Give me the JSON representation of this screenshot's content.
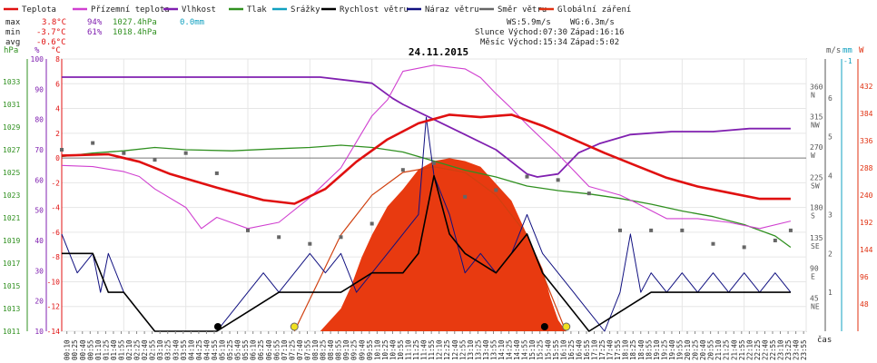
{
  "legend": [
    {
      "label": "Teplota",
      "color": "#e01010"
    },
    {
      "label": "Přízemní teplota",
      "color": "#d040d0"
    },
    {
      "label": "Vlhkost",
      "color": "#8020b0"
    },
    {
      "label": "Tlak",
      "color": "#309020"
    },
    {
      "label": "Srážky",
      "color": "#10a0c0"
    },
    {
      "label": "Rychlost větru",
      "color": "#000000"
    },
    {
      "label": "Náraz větru",
      "color": "#101080"
    },
    {
      "label": "Směr větru",
      "color": "#666666"
    },
    {
      "label": "Globální záření",
      "color": "#e03010"
    }
  ],
  "stats": {
    "max": {
      "label": "max",
      "temp": "3.8°C",
      "hum": "94%",
      "press": "1027.4hPa",
      "rain": "0.0mm"
    },
    "min": {
      "label": "min",
      "temp": "-3.7°C",
      "hum": "61%",
      "press": "1018.4hPa"
    },
    "avg": {
      "label": "avg",
      "temp": "-0.6°C"
    }
  },
  "info": {
    "ws": "WS:5.9m/s",
    "wg": "WG:6.3m/s",
    "sun_label": "Slunce",
    "sun_rise": "Východ:07:30",
    "sun_set": "Západ:16:16",
    "moon_label": "Měsíc",
    "moon_rise": "Východ:15:34",
    "moon_set": "Západ:5:02"
  },
  "units": {
    "hpa": "hPa",
    "pct": "%",
    "degc": "°C",
    "ms": "m/s",
    "mm": "mm",
    "w": "W",
    "time": "čas"
  },
  "chart_data": {
    "type": "line",
    "title": "24.11.2015",
    "x_start_minutes": 10,
    "x_step_minutes": 15,
    "xlabel": "čas",
    "x_ticks": [
      "00:10",
      "00:25",
      "00:40",
      "00:55",
      "01:10",
      "01:25",
      "01:40",
      "01:55",
      "02:10",
      "02:25",
      "02:40",
      "02:55",
      "03:10",
      "03:25",
      "03:40",
      "03:55",
      "04:10",
      "04:25",
      "04:40",
      "04:55",
      "05:10",
      "05:25",
      "05:40",
      "05:55",
      "06:10",
      "06:25",
      "06:40",
      "06:55",
      "07:10",
      "07:25",
      "07:40",
      "07:55",
      "08:10",
      "08:25",
      "08:40",
      "08:55",
      "09:10",
      "09:25",
      "09:40",
      "09:55",
      "10:10",
      "10:25",
      "10:40",
      "10:55",
      "11:10",
      "11:25",
      "11:40",
      "11:55",
      "12:10",
      "12:25",
      "12:40",
      "12:55",
      "13:10",
      "13:25",
      "13:40",
      "13:55",
      "14:10",
      "14:25",
      "14:40",
      "14:55",
      "15:10",
      "15:25",
      "15:40",
      "15:55",
      "16:10",
      "16:25",
      "16:40",
      "16:55",
      "17:10",
      "17:25",
      "17:40",
      "17:55",
      "18:10",
      "18:25",
      "18:40",
      "18:55",
      "19:10",
      "19:25",
      "19:40",
      "19:55",
      "20:10",
      "20:25",
      "20:40",
      "20:55",
      "21:10",
      "21:25",
      "21:40",
      "21:55",
      "22:10",
      "22:25",
      "22:40",
      "22:55",
      "23:10",
      "23:25",
      "23:40",
      "23:55"
    ],
    "axes": {
      "pressure_hpa": {
        "range": [
          1011,
          1035
        ],
        "ticks": [
          1011,
          1013,
          1015,
          1017,
          1019,
          1021,
          1023,
          1025,
          1027,
          1029,
          1031,
          1033
        ]
      },
      "humidity_pct": {
        "range": [
          10,
          100
        ],
        "ticks": [
          10,
          20,
          30,
          40,
          50,
          60,
          70,
          80,
          90,
          100
        ]
      },
      "temperature_c": {
        "range": [
          -14,
          8
        ],
        "ticks": [
          -14,
          -12,
          -10,
          -8,
          -6,
          -4,
          -2,
          0,
          2,
          4,
          6,
          8
        ]
      },
      "wind_dir": {
        "ticks": [
          {
            "deg": 360,
            "label": "N"
          },
          {
            "deg": 315,
            "label": "NW"
          },
          {
            "deg": 270,
            "label": "W"
          },
          {
            "deg": 225,
            "label": "SW"
          },
          {
            "deg": 180,
            "label": "S"
          },
          {
            "deg": 135,
            "label": "SE"
          },
          {
            "deg": 90,
            "label": "E"
          },
          {
            "deg": 45,
            "label": "NE"
          }
        ]
      },
      "wind_speed_ms": {
        "range": [
          0,
          7
        ],
        "ticks": [
          1,
          2,
          3,
          4,
          5,
          6
        ]
      },
      "rain_mm": {
        "ticks": [
          -1
        ]
      },
      "radiation_w": {
        "range": [
          0,
          480
        ],
        "ticks": [
          48,
          96,
          144,
          192,
          240,
          288,
          336,
          384,
          432
        ]
      }
    },
    "series": [
      {
        "name": "Teplota",
        "unit": "°C",
        "points": [
          [
            0,
            0.2
          ],
          [
            90,
            0.3
          ],
          [
            150,
            -0.3
          ],
          [
            210,
            -1.3
          ],
          [
            300,
            -2.4
          ],
          [
            390,
            -3.4
          ],
          [
            450,
            -3.7
          ],
          [
            510,
            -2.5
          ],
          [
            570,
            -0.3
          ],
          [
            630,
            1.5
          ],
          [
            690,
            2.8
          ],
          [
            750,
            3.5
          ],
          [
            810,
            3.3
          ],
          [
            870,
            3.5
          ],
          [
            930,
            2.6
          ],
          [
            990,
            1.5
          ],
          [
            1050,
            0.4
          ],
          [
            1110,
            -0.6
          ],
          [
            1170,
            -1.6
          ],
          [
            1230,
            -2.3
          ],
          [
            1290,
            -2.8
          ],
          [
            1350,
            -3.3
          ],
          [
            1410,
            -3.3
          ]
        ]
      },
      {
        "name": "Přízemní teplota",
        "unit": "°C",
        "points": [
          [
            0,
            -0.6
          ],
          [
            60,
            -0.7
          ],
          [
            120,
            -1.1
          ],
          [
            150,
            -1.5
          ],
          [
            180,
            -2.5
          ],
          [
            240,
            -4.0
          ],
          [
            270,
            -5.7
          ],
          [
            300,
            -4.8
          ],
          [
            360,
            -5.7
          ],
          [
            420,
            -5.2
          ],
          [
            480,
            -3.2
          ],
          [
            540,
            -0.8
          ],
          [
            600,
            3.4
          ],
          [
            630,
            4.7
          ],
          [
            660,
            7.0
          ],
          [
            720,
            7.5
          ],
          [
            780,
            7.2
          ],
          [
            810,
            6.5
          ],
          [
            840,
            5.2
          ],
          [
            870,
            4.0
          ],
          [
            900,
            2.7
          ],
          [
            930,
            1.5
          ],
          [
            960,
            0.3
          ],
          [
            990,
            -1.0
          ],
          [
            1020,
            -2.3
          ],
          [
            1080,
            -3.0
          ],
          [
            1110,
            -3.6
          ],
          [
            1170,
            -4.9
          ],
          [
            1230,
            -4.9
          ],
          [
            1290,
            -5.2
          ],
          [
            1350,
            -5.7
          ],
          [
            1410,
            -5.1
          ]
        ]
      },
      {
        "name": "Vlhkost",
        "unit": "%",
        "points": [
          [
            0,
            94
          ],
          [
            300,
            94
          ],
          [
            500,
            94
          ],
          [
            600,
            92
          ],
          [
            640,
            87
          ],
          [
            660,
            85
          ],
          [
            720,
            80
          ],
          [
            780,
            75
          ],
          [
            840,
            70
          ],
          [
            870,
            66
          ],
          [
            900,
            62
          ],
          [
            920,
            61
          ],
          [
            960,
            62
          ],
          [
            1000,
            69
          ],
          [
            1040,
            72
          ],
          [
            1100,
            75
          ],
          [
            1180,
            76
          ],
          [
            1260,
            76
          ],
          [
            1330,
            77
          ],
          [
            1410,
            77
          ]
        ]
      },
      {
        "name": "Tlak",
        "unit": "hPa",
        "points": [
          [
            0,
            1026.4
          ],
          [
            60,
            1026.7
          ],
          [
            120,
            1026.9
          ],
          [
            180,
            1027.2
          ],
          [
            240,
            1027.0
          ],
          [
            330,
            1026.9
          ],
          [
            420,
            1027.1
          ],
          [
            480,
            1027.2
          ],
          [
            540,
            1027.4
          ],
          [
            600,
            1027.2
          ],
          [
            660,
            1026.8
          ],
          [
            720,
            1026.0
          ],
          [
            780,
            1025.2
          ],
          [
            840,
            1024.6
          ],
          [
            900,
            1023.8
          ],
          [
            960,
            1023.4
          ],
          [
            1020,
            1023.1
          ],
          [
            1080,
            1022.7
          ],
          [
            1140,
            1022.2
          ],
          [
            1200,
            1021.6
          ],
          [
            1260,
            1021.1
          ],
          [
            1320,
            1020.4
          ],
          [
            1380,
            1019.4
          ],
          [
            1410,
            1018.4
          ]
        ]
      },
      {
        "name": "Rychlost větru",
        "unit": "m/s",
        "points": [
          [
            0,
            2.0
          ],
          [
            60,
            2.0
          ],
          [
            90,
            1.0
          ],
          [
            120,
            1.0
          ],
          [
            150,
            0.5
          ],
          [
            180,
            0.0
          ],
          [
            300,
            0.0
          ],
          [
            360,
            0.5
          ],
          [
            420,
            1.0
          ],
          [
            480,
            1.0
          ],
          [
            540,
            1.0
          ],
          [
            600,
            1.5
          ],
          [
            660,
            1.5
          ],
          [
            690,
            2.0
          ],
          [
            720,
            4.0
          ],
          [
            750,
            2.5
          ],
          [
            780,
            2.0
          ],
          [
            840,
            1.5
          ],
          [
            900,
            2.5
          ],
          [
            930,
            1.5
          ],
          [
            960,
            1.0
          ],
          [
            990,
            0.5
          ],
          [
            1020,
            0.0
          ],
          [
            1080,
            0.5
          ],
          [
            1140,
            1.0
          ],
          [
            1200,
            1.0
          ],
          [
            1260,
            1.0
          ],
          [
            1320,
            1.0
          ],
          [
            1380,
            1.0
          ],
          [
            1410,
            1.0
          ]
        ]
      },
      {
        "name": "Náraz větru",
        "unit": "m/s",
        "points": [
          [
            0,
            2.5
          ],
          [
            30,
            1.5
          ],
          [
            60,
            2.0
          ],
          [
            75,
            1.0
          ],
          [
            90,
            2.0
          ],
          [
            120,
            1.0
          ],
          [
            150,
            0.5
          ],
          [
            180,
            0.0
          ],
          [
            300,
            0.0
          ],
          [
            330,
            0.5
          ],
          [
            360,
            1.0
          ],
          [
            390,
            1.5
          ],
          [
            420,
            1.0
          ],
          [
            450,
            1.5
          ],
          [
            480,
            2.0
          ],
          [
            510,
            1.5
          ],
          [
            540,
            2.0
          ],
          [
            570,
            1.0
          ],
          [
            600,
            1.5
          ],
          [
            630,
            2.0
          ],
          [
            660,
            2.5
          ],
          [
            690,
            3.0
          ],
          [
            705,
            5.5
          ],
          [
            720,
            4.0
          ],
          [
            750,
            3.0
          ],
          [
            780,
            1.5
          ],
          [
            810,
            2.0
          ],
          [
            840,
            1.5
          ],
          [
            870,
            2.0
          ],
          [
            900,
            3.0
          ],
          [
            930,
            2.0
          ],
          [
            960,
            1.5
          ],
          [
            990,
            1.0
          ],
          [
            1020,
            0.5
          ],
          [
            1050,
            0.0
          ],
          [
            1080,
            1.0
          ],
          [
            1100,
            2.5
          ],
          [
            1120,
            1.0
          ],
          [
            1140,
            1.5
          ],
          [
            1170,
            1.0
          ],
          [
            1200,
            1.5
          ],
          [
            1230,
            1.0
          ],
          [
            1260,
            1.5
          ],
          [
            1290,
            1.0
          ],
          [
            1320,
            1.5
          ],
          [
            1350,
            1.0
          ],
          [
            1380,
            1.5
          ],
          [
            1410,
            1.0
          ]
        ]
      },
      {
        "name": "Globální záření",
        "unit": "W",
        "points": [
          [
            500,
            0
          ],
          [
            520,
            20
          ],
          [
            540,
            40
          ],
          [
            560,
            80
          ],
          [
            580,
            130
          ],
          [
            600,
            170
          ],
          [
            630,
            220
          ],
          [
            660,
            250
          ],
          [
            690,
            285
          ],
          [
            720,
            300
          ],
          [
            750,
            305
          ],
          [
            780,
            300
          ],
          [
            810,
            290
          ],
          [
            840,
            260
          ],
          [
            870,
            230
          ],
          [
            900,
            170
          ],
          [
            930,
            110
          ],
          [
            945,
            60
          ],
          [
            960,
            20
          ],
          [
            975,
            0
          ]
        ]
      },
      {
        "name": "Směr větru",
        "unit": "°",
        "points": [
          [
            0,
            270
          ],
          [
            60,
            280
          ],
          [
            120,
            265
          ],
          [
            180,
            255
          ],
          [
            240,
            265
          ],
          [
            300,
            235
          ],
          [
            360,
            150
          ],
          [
            420,
            140
          ],
          [
            480,
            130
          ],
          [
            540,
            140
          ],
          [
            600,
            160
          ],
          [
            660,
            240
          ],
          [
            720,
            250
          ],
          [
            780,
            200
          ],
          [
            840,
            210
          ],
          [
            900,
            230
          ],
          [
            960,
            225
          ],
          [
            1020,
            205
          ],
          [
            1080,
            150
          ],
          [
            1140,
            150
          ],
          [
            1200,
            150
          ],
          [
            1260,
            130
          ],
          [
            1320,
            125
          ],
          [
            1380,
            135
          ],
          [
            1410,
            150
          ]
        ]
      }
    ],
    "theoretical_radiation": [
      [
        450,
        0
      ],
      [
        540,
        170
      ],
      [
        600,
        240
      ],
      [
        660,
        280
      ],
      [
        720,
        290
      ],
      [
        780,
        280
      ],
      [
        840,
        240
      ],
      [
        900,
        170
      ],
      [
        975,
        0
      ]
    ],
    "sunrise_min": 450,
    "sunset_min": 976,
    "moonrise_min": 934,
    "moonset_min": 302
  }
}
